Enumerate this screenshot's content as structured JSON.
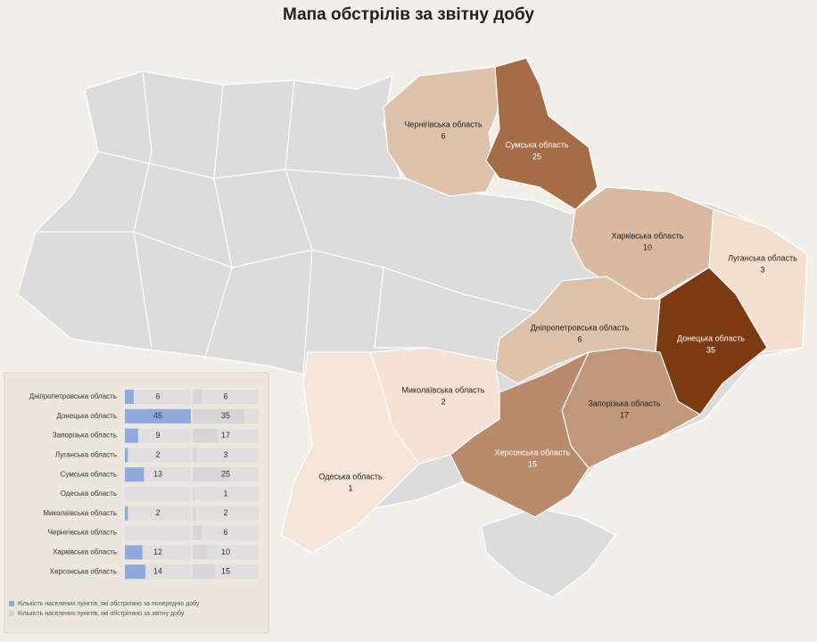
{
  "title": "Мапа обстрілів за звітну добу",
  "regions": [
    {
      "name": "Чернігівська область",
      "value": 6,
      "color": "#dcc1ab"
    },
    {
      "name": "Сумська область",
      "value": 25,
      "color": "#a56c48"
    },
    {
      "name": "Харківська область",
      "value": 10,
      "color": "#d9b99f"
    },
    {
      "name": "Луганська область",
      "value": 3,
      "color": "#f4dfcf"
    },
    {
      "name": "Донецька область",
      "value": 35,
      "color": "#7b3a12"
    },
    {
      "name": "Дніпропетровська область",
      "value": 6,
      "color": "#dcc1ab"
    },
    {
      "name": "Запорізька область",
      "value": 17,
      "color": "#c0977b"
    },
    {
      "name": "Херсонська область",
      "value": 15,
      "color": "#b98b6c"
    },
    {
      "name": "Миколаївська область",
      "value": 2,
      "color": "#f4e2d4"
    },
    {
      "name": "Одеська область",
      "value": 1,
      "color": "#f6e6da"
    }
  ],
  "chart_data": {
    "type": "bar",
    "categories": [
      "Дніпропетровська область",
      "Донецька область",
      "Запорізька область",
      "Луганська область",
      "Сумська область",
      "Одеська область",
      "Миколаївська область",
      "Чернігівська область",
      "Харківська область",
      "Херсонська область"
    ],
    "series": [
      {
        "name": "Кількість населених пунктів, які обстріляно за попередню добу",
        "color": "#8fa9dc",
        "values": [
          6,
          45,
          9,
          2,
          13,
          null,
          2,
          null,
          12,
          14
        ]
      },
      {
        "name": "Кількість населених пунктів, які обстріляно за звітну добу",
        "color": "#d6d4d6",
        "values": [
          6,
          35,
          17,
          3,
          25,
          1,
          2,
          6,
          10,
          15
        ]
      }
    ]
  }
}
